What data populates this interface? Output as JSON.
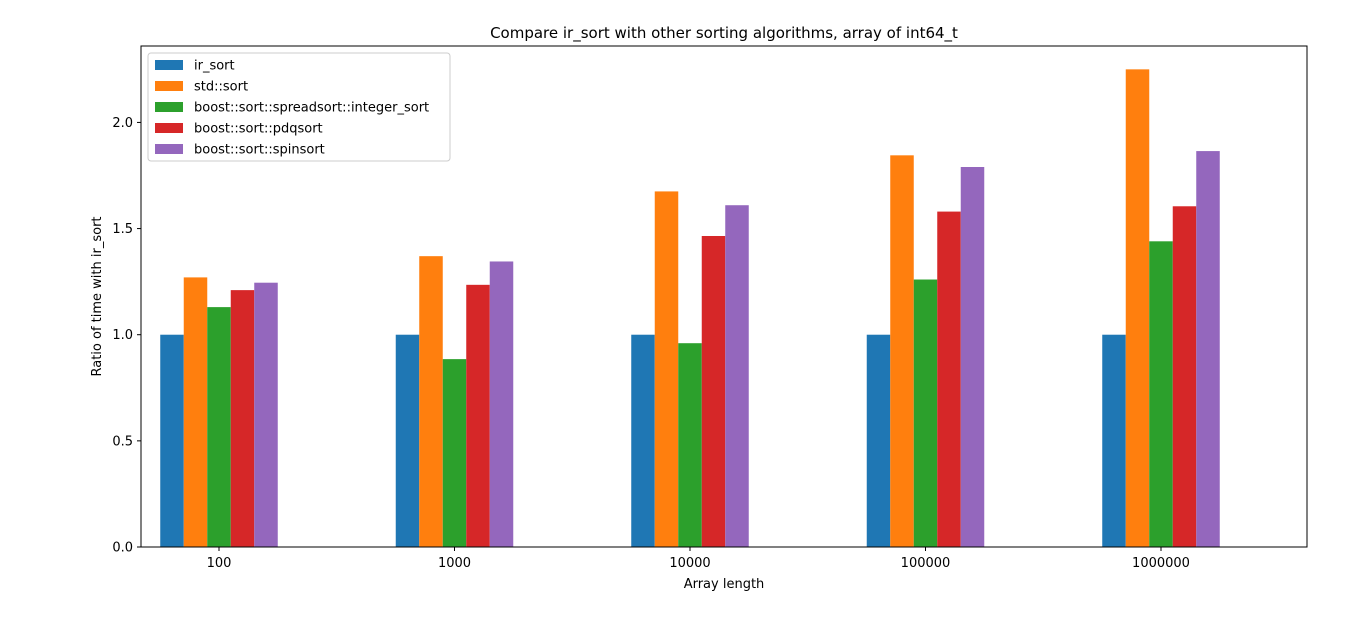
{
  "chart_data": {
    "type": "bar",
    "title": "Compare ir_sort with other sorting algorithms, array of int64_t",
    "xlabel": "Array length",
    "ylabel": "Ratio of time with ir_sort",
    "categories": [
      "100",
      "1000",
      "10000",
      "100000",
      "1000000"
    ],
    "ylim": [
      0,
      2.36
    ],
    "yticks": [
      "0.0",
      "0.5",
      "1.0",
      "1.5",
      "2.0"
    ],
    "grid": false,
    "legend_position": "top-left",
    "series": [
      {
        "name": "ir_sort",
        "color": "#1f77b4",
        "values": [
          1.0,
          1.0,
          1.0,
          1.0,
          1.0
        ]
      },
      {
        "name": "std::sort",
        "color": "#ff7f0e",
        "values": [
          1.27,
          1.37,
          1.675,
          1.845,
          2.25
        ]
      },
      {
        "name": "boost::sort::spreadsort::integer_sort",
        "color": "#2ca02c",
        "values": [
          1.13,
          0.885,
          0.96,
          1.26,
          1.44
        ]
      },
      {
        "name": "boost::sort::pdqsort",
        "color": "#d62728",
        "values": [
          1.21,
          1.235,
          1.465,
          1.58,
          1.605
        ]
      },
      {
        "name": "boost::sort::spinsort",
        "color": "#9467bd",
        "values": [
          1.245,
          1.345,
          1.61,
          1.79,
          1.865
        ]
      }
    ]
  }
}
